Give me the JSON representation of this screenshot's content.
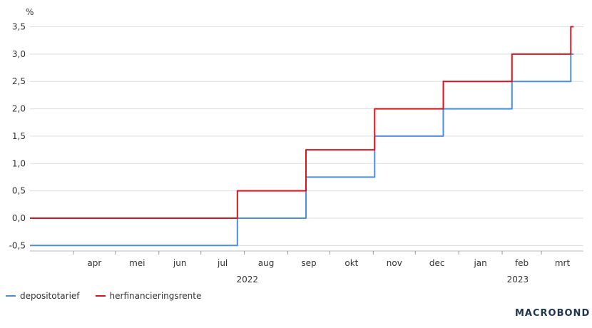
{
  "chart_data": {
    "type": "line",
    "ylabel": "%",
    "ylim": [
      -0.6,
      3.65
    ],
    "yticks": [
      "-0,5",
      "0,0",
      "0,5",
      "1,0",
      "1,5",
      "2,0",
      "2,5",
      "3,0",
      "3,5"
    ],
    "ytick_values": [
      -0.5,
      0,
      0.5,
      1.0,
      1.5,
      2.0,
      2.5,
      3.0,
      3.5
    ],
    "xlim": [
      "2022-03-01",
      "2023-03-31"
    ],
    "month_ticks": [
      "2022-04-01",
      "2022-05-01",
      "2022-06-01",
      "2022-07-01",
      "2022-08-01",
      "2022-09-01",
      "2022-10-01",
      "2022-11-01",
      "2022-12-01",
      "2023-01-01",
      "2023-02-01",
      "2023-03-01"
    ],
    "month_labels": [
      "apr",
      "mei",
      "jun",
      "jul",
      "aug",
      "sep",
      "okt",
      "nov",
      "dec",
      "jan",
      "feb",
      "mrt"
    ],
    "years": [
      {
        "label": "2022",
        "anchor": "2022-07-27"
      },
      {
        "label": "2023",
        "anchor": "2023-02-05"
      }
    ],
    "grid": true,
    "legend_position": "bottom-left",
    "series": [
      {
        "name": "depositotarief",
        "color": "#4a8ee0",
        "points": [
          [
            "2022-03-01",
            -0.5
          ],
          [
            "2022-07-27",
            -0.5
          ],
          [
            "2022-07-27",
            0.0
          ],
          [
            "2022-09-14",
            0.0
          ],
          [
            "2022-09-14",
            0.75
          ],
          [
            "2022-11-02",
            0.75
          ],
          [
            "2022-11-02",
            1.5
          ],
          [
            "2022-12-21",
            1.5
          ],
          [
            "2022-12-21",
            2.0
          ],
          [
            "2023-02-08",
            2.0
          ],
          [
            "2023-02-08",
            2.5
          ],
          [
            "2023-03-22",
            2.5
          ],
          [
            "2023-03-22",
            3.0
          ],
          [
            "2023-03-24",
            3.0
          ]
        ]
      },
      {
        "name": "herfinancieringsrente",
        "color": "#d9141b",
        "points": [
          [
            "2022-03-01",
            0.0
          ],
          [
            "2022-07-27",
            0.0
          ],
          [
            "2022-07-27",
            0.5
          ],
          [
            "2022-09-14",
            0.5
          ],
          [
            "2022-09-14",
            1.25
          ],
          [
            "2022-11-02",
            1.25
          ],
          [
            "2022-11-02",
            2.0
          ],
          [
            "2022-12-21",
            2.0
          ],
          [
            "2022-12-21",
            2.5
          ],
          [
            "2023-02-08",
            2.5
          ],
          [
            "2023-02-08",
            3.0
          ],
          [
            "2023-03-22",
            3.0
          ],
          [
            "2023-03-22",
            3.5
          ],
          [
            "2023-03-24",
            3.5
          ]
        ]
      }
    ]
  },
  "brand": "MACROBOND"
}
